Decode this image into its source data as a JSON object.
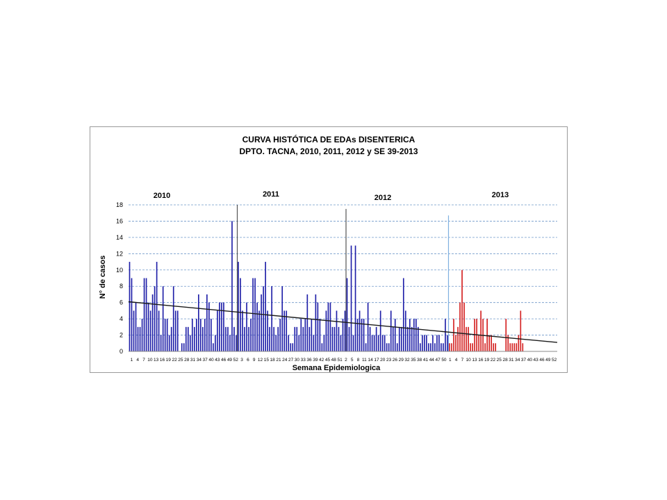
{
  "chart_data": {
    "type": "bar",
    "title": "CURVA HISTÓTICA DE EDAs DISENTERICA",
    "subtitle": "DPTO. TACNA,  2010, 2011, 2012 y SE 39-2013",
    "xlabel": "Semana Epidemiologica",
    "ylabel": "N° de casos",
    "ylim": [
      0,
      18
    ],
    "yticks": [
      0,
      2,
      4,
      6,
      8,
      10,
      12,
      14,
      16,
      18
    ],
    "grid": true,
    "year_labels": [
      "2010",
      "2011",
      "2012",
      "2013"
    ],
    "xtick_labels": [
      "1",
      "4",
      "7",
      "10",
      "13",
      "16",
      "19",
      "22",
      "25",
      "28",
      "31",
      "34",
      "37",
      "40",
      "43",
      "46",
      "49",
      "52",
      "3",
      "6",
      "9",
      "12",
      "15",
      "18",
      "21",
      "24",
      "27",
      "30",
      "33",
      "36",
      "39",
      "42",
      "45",
      "48",
      "51",
      "2",
      "5",
      "8",
      "11",
      "14",
      "17",
      "20",
      "23",
      "26",
      "29",
      "32",
      "35",
      "38",
      "41",
      "44",
      "47",
      "50",
      "1",
      "4",
      "7",
      "10",
      "13",
      "16",
      "19",
      "22",
      "25",
      "28",
      "31",
      "34",
      "37",
      "40",
      "43",
      "46",
      "49",
      "52"
    ],
    "series": [
      {
        "values": [
          11,
          9,
          5,
          6,
          3,
          3,
          4,
          9,
          9,
          6,
          5,
          7,
          8,
          11,
          5,
          2,
          8,
          4,
          4,
          2,
          3,
          8,
          5,
          5,
          0,
          1,
          1,
          3,
          3,
          2,
          4,
          3,
          4,
          7,
          4,
          3,
          4,
          7,
          6,
          4,
          1,
          2,
          5,
          6,
          6,
          6,
          3,
          3,
          2,
          16,
          3,
          2,
          11,
          9,
          5,
          3,
          6,
          3,
          4,
          9,
          9,
          6,
          5,
          7,
          8,
          11,
          5,
          3,
          8,
          3,
          2,
          3,
          4,
          8,
          5,
          5,
          2,
          1,
          1,
          3,
          3,
          2,
          4,
          3,
          4,
          7,
          3,
          4,
          2,
          7,
          6,
          4,
          1,
          2,
          5,
          6,
          6,
          3,
          3,
          5,
          3,
          2,
          4,
          5,
          9,
          3,
          13,
          2,
          13,
          4,
          5,
          4,
          4,
          1,
          6,
          3,
          2,
          2,
          3,
          2,
          5,
          2,
          2,
          1,
          1,
          5,
          3,
          4,
          1,
          3,
          3,
          9,
          5,
          3,
          4,
          3,
          4,
          4,
          3,
          1,
          2,
          2,
          2,
          1,
          1,
          2,
          1,
          2,
          2,
          1,
          1,
          4,
          2
        ]
      },
      {
        "values": [
          1,
          1,
          4,
          2,
          3,
          6,
          10,
          6,
          3,
          3,
          1,
          1,
          4,
          4,
          2,
          5,
          4,
          1,
          4,
          2,
          2,
          1,
          1,
          0,
          0,
          0,
          0,
          4,
          2,
          1,
          1,
          1,
          1,
          2,
          5,
          1,
          0,
          0,
          0,
          0,
          0,
          0,
          0,
          0,
          0,
          0,
          0,
          0,
          0,
          0,
          0,
          0
        ]
      }
    ],
    "trendline": {
      "start_y": 6.1,
      "end_y": 1.1
    },
    "colors": {
      "series_2010_2012": "#1f1fa8",
      "series_2013": "#d42020",
      "trendline": "#1a1a1a",
      "grid": "#6f97c9",
      "divider": "#555555",
      "divider_2013": "#7fb0e0"
    }
  }
}
